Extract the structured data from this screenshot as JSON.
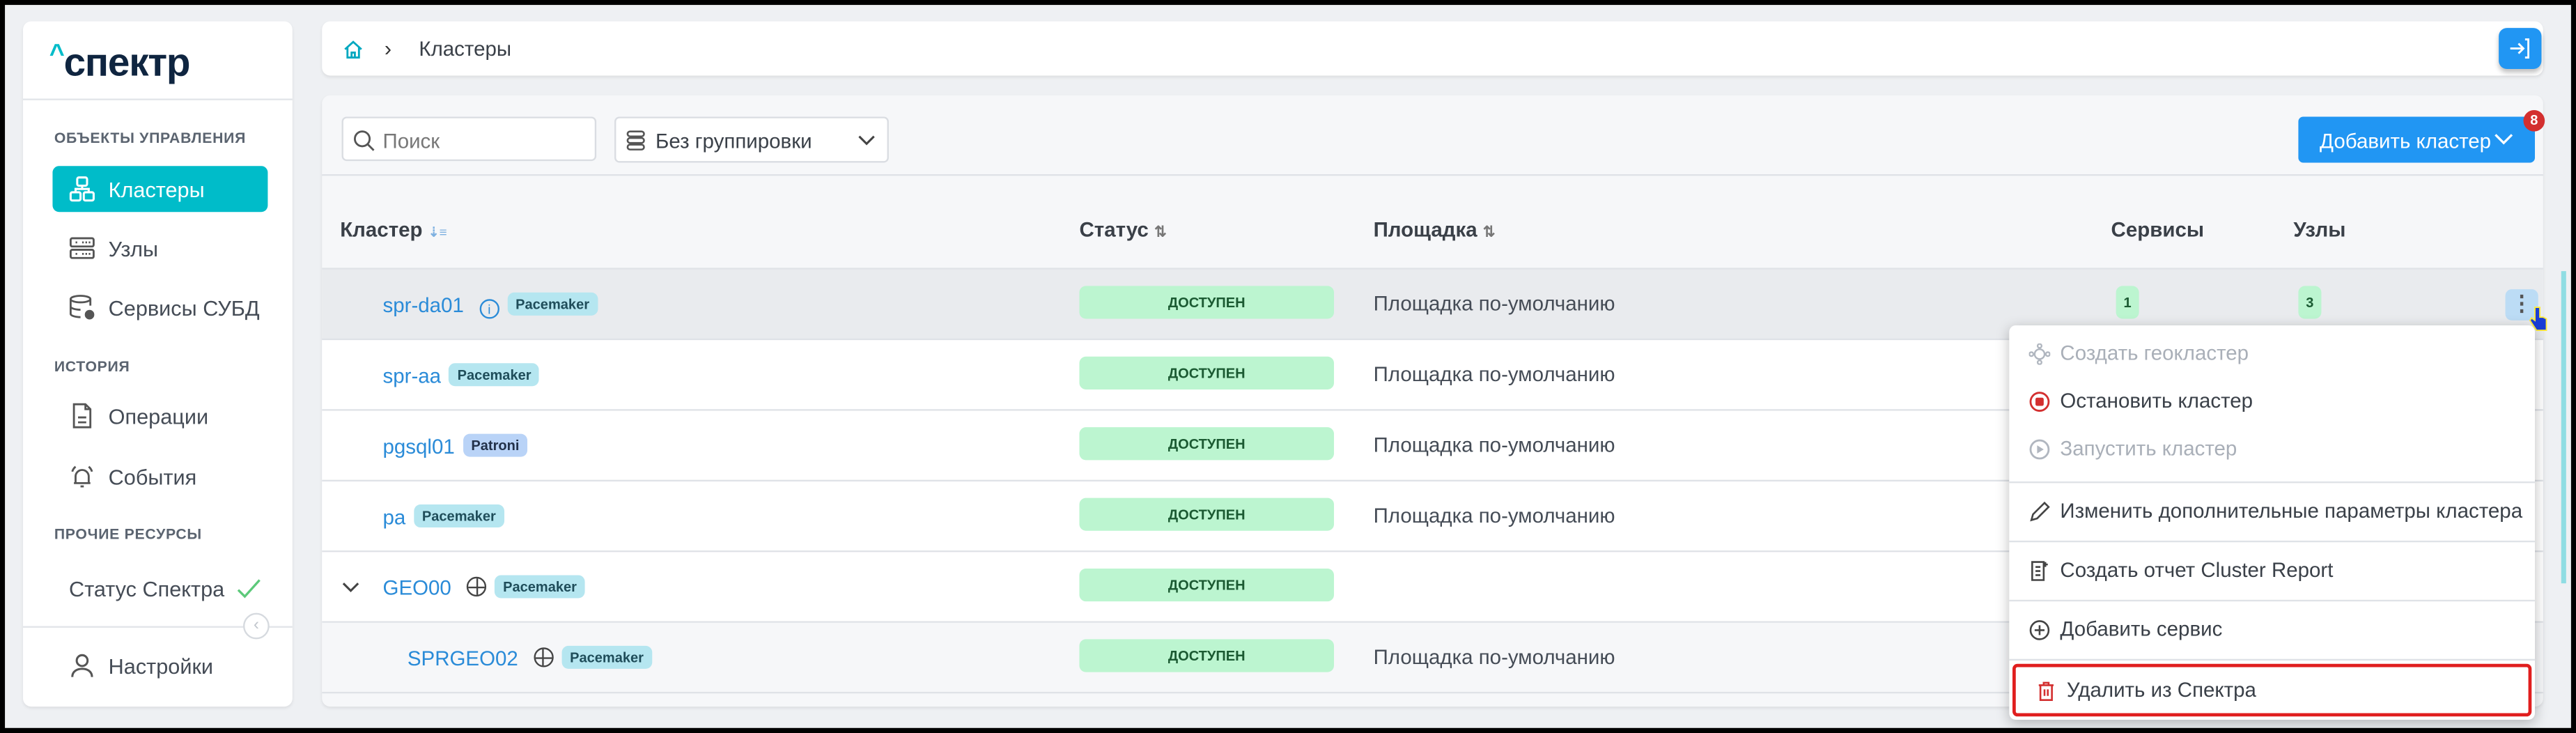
{
  "app": {
    "logo": "^спектр",
    "accent": "#00bcc9",
    "link_color": "#2a8bd8"
  },
  "breadcrumb": {
    "home_icon": "home-icon",
    "current": "Кластеры"
  },
  "sidebar": {
    "sections": [
      {
        "label": "ОБЪЕКТЫ УПРАВЛЕНИЯ"
      },
      {
        "label": "ИСТОРИЯ"
      },
      {
        "label": "ПРОЧИЕ РЕСУРСЫ"
      }
    ],
    "items": [
      {
        "label": "Кластеры",
        "icon": "clusters-icon",
        "active": true
      },
      {
        "label": "Узлы",
        "icon": "servers-icon"
      },
      {
        "label": "Сервисы СУБД",
        "icon": "database-gear-icon"
      },
      {
        "label": "Операции",
        "icon": "document-icon"
      },
      {
        "label": "События",
        "icon": "bell-alarm-icon"
      },
      {
        "label": "Статус Спектра",
        "icon": "check-icon"
      },
      {
        "label": "Настройки",
        "icon": "user-icon"
      }
    ]
  },
  "toolbar": {
    "search_placeholder": "Поиск",
    "grouping": "Без группировки",
    "add_cluster": "Добавить кластер",
    "badge": "8"
  },
  "table": {
    "headers": {
      "cluster": "Кластер",
      "status": "Статус",
      "site": "Площадка",
      "services": "Сервисы",
      "nodes": "Узлы"
    },
    "rows": [
      {
        "name": "spr-da01",
        "tag": "Pacemaker",
        "status": "ДОСТУПЕН",
        "site": "Площадка по-умолчанию",
        "services": "1",
        "nodes": "3"
      },
      {
        "name": "spr-aa",
        "tag": "Pacemaker",
        "status": "ДОСТУПЕН",
        "site": "Площадка по-умолчанию"
      },
      {
        "name": "pgsql01",
        "tag": "Patroni",
        "status": "ДОСТУПЕН",
        "site": "Площадка по-умолчанию"
      },
      {
        "name": "pa",
        "tag": "Pacemaker",
        "status": "ДОСТУПЕН",
        "site": "Площадка по-умолчанию"
      },
      {
        "name": "GEO00",
        "tag": "Pacemaker",
        "status": "ДОСТУПЕН",
        "site": ""
      },
      {
        "name": "SPRGEO02",
        "tag": "Pacemaker",
        "status": "ДОСТУПЕН",
        "site": "Площадка по-умолчанию"
      }
    ]
  },
  "menu": {
    "items": [
      {
        "label": "Создать геокластер",
        "disabled": true
      },
      {
        "label": "Остановить кластер"
      },
      {
        "label": "Запустить кластер",
        "disabled": true
      },
      {
        "label": "Изменить дополнительные параметры кластера"
      },
      {
        "label": "Создать отчет Cluster Report"
      },
      {
        "label": "Добавить сервис"
      },
      {
        "label": "Удалить из Спектра",
        "highlighted": true
      }
    ]
  }
}
